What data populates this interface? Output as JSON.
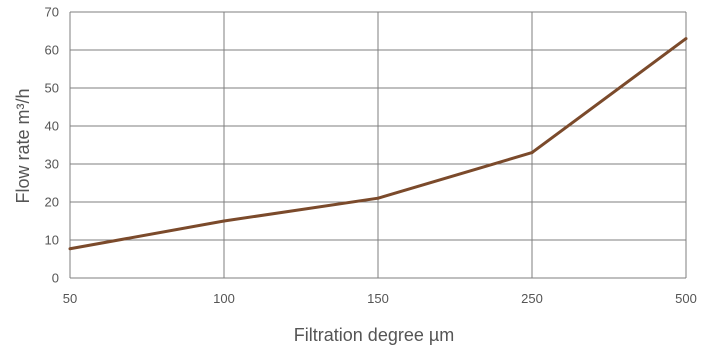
{
  "chart_data": {
    "type": "line",
    "categories": [
      "50",
      "100",
      "150",
      "250",
      "500"
    ],
    "series": [
      {
        "values": [
          7.7,
          15,
          21,
          33,
          63
        ],
        "color": "#7B4A2B"
      }
    ],
    "xlabel": "Filtration degree µm",
    "ylabel": "Flow rate m³/h",
    "ylim": [
      0,
      70
    ],
    "yticks": [
      "0",
      "10",
      "20",
      "30",
      "40",
      "50",
      "60",
      "70"
    ],
    "grid": true,
    "legend": "none"
  }
}
